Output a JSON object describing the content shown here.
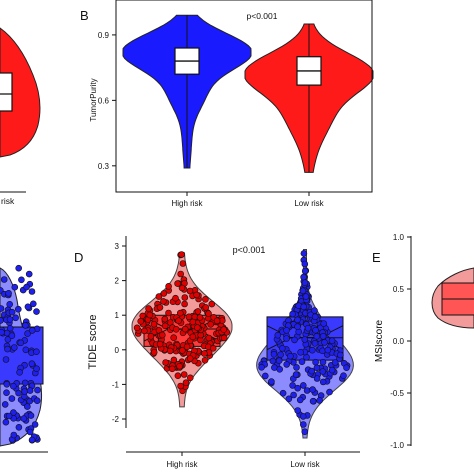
{
  "panels": {
    "A": {
      "xtick": "risk"
    },
    "B": {
      "letter": "B",
      "ylabel": "TumorPurity",
      "pvalue": "p<0.001",
      "yticks": [
        "0.3",
        "0.6",
        "0.9"
      ],
      "categories": [
        "High risk",
        "Low risk"
      ]
    },
    "D": {
      "letter": "D",
      "ylabel": "TIDE score",
      "pvalue": "p<0.001",
      "yticks": [
        "-2",
        "-1",
        "0",
        "1",
        "2",
        "3"
      ],
      "categories": [
        "High risk",
        "Low risk"
      ]
    },
    "E": {
      "letter": "E",
      "ylabel": "MSIscore",
      "yticks": [
        "-1.0",
        "-0.5",
        "0.0",
        "0.5",
        "1.0"
      ]
    }
  },
  "colors": {
    "high_risk": "#1a1aff",
    "low_risk": "#ff1a1a",
    "low_risk_light": "#f39a9a",
    "high_risk_light": "#8c8cff"
  },
  "chart_data": [
    {
      "panel": "B",
      "type": "violin",
      "xlabel": "",
      "ylabel": "TumorPurity",
      "ylim": [
        0.18,
        1.06
      ],
      "categories": [
        "High risk",
        "Low risk"
      ],
      "series": [
        {
          "name": "High risk",
          "color": "#1a1aff",
          "q1": 0.72,
          "median": 0.78,
          "q3": 0.84,
          "min": 0.29,
          "max": 0.99
        },
        {
          "name": "Low risk",
          "color": "#ff1a1a",
          "q1": 0.67,
          "median": 0.735,
          "q3": 0.8,
          "min": 0.27,
          "max": 0.95
        }
      ],
      "annotation": "p<0.001",
      "grid": false
    },
    {
      "panel": "D",
      "type": "violin",
      "xlabel": "",
      "ylabel": "TIDE score",
      "ylim": [
        -2.3,
        3.15
      ],
      "categories": [
        "High risk",
        "Low risk"
      ],
      "series": [
        {
          "name": "High risk",
          "color": "#f39a9a",
          "q1": 0.1,
          "median": 0.6,
          "q3": 1.0,
          "min": -1.65,
          "max": 2.8
        },
        {
          "name": "Low risk",
          "color": "#8c8cff",
          "q1": -0.3,
          "median": 0.35,
          "q3": 0.95,
          "min": -2.55,
          "max": 2.9
        }
      ],
      "annotation": "p<0.001",
      "grid": false
    }
  ]
}
